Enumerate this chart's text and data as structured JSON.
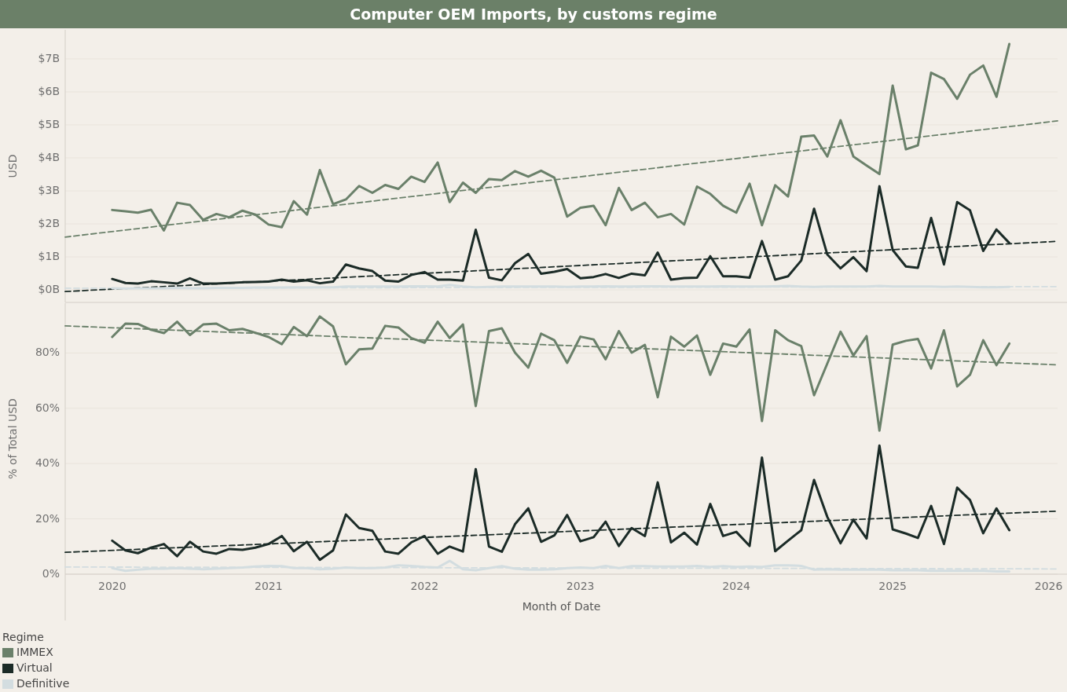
{
  "chart_data": [
    {
      "type": "line",
      "title": "Computer OEM Imports, by customs regime",
      "ylabel": "USD",
      "tick_labels": "y",
      "grid": "y",
      "line_style": "solid",
      "x": [
        "2020-01",
        "2020-02",
        "2020-03",
        "2020-04",
        "2020-05",
        "2020-06",
        "2020-07",
        "2020-08",
        "2020-09",
        "2020-10",
        "2020-11",
        "2020-12",
        "2021-01",
        "2021-02",
        "2021-03",
        "2021-04",
        "2021-05",
        "2021-06",
        "2021-07",
        "2021-08",
        "2021-09",
        "2021-10",
        "2021-11",
        "2021-12",
        "2022-01",
        "2022-02",
        "2022-03",
        "2022-04",
        "2022-05",
        "2022-06",
        "2022-07",
        "2022-08",
        "2022-09",
        "2022-10",
        "2022-11",
        "2022-12",
        "2023-01",
        "2023-02",
        "2023-03",
        "2023-04",
        "2023-05",
        "2023-06",
        "2023-07",
        "2023-08",
        "2023-09",
        "2023-10",
        "2023-11",
        "2023-12",
        "2024-01",
        "2024-02",
        "2024-03",
        "2024-04",
        "2024-05",
        "2024-06",
        "2024-07",
        "2024-08",
        "2024-09",
        "2024-10",
        "2024-11",
        "2024-12",
        "2025-01",
        "2025-02",
        "2025-03",
        "2025-04",
        "2025-05",
        "2025-06",
        "2025-07",
        "2025-08",
        "2025-09",
        "2025-10"
      ],
      "xlim": [
        "2019-09-13",
        "2026-01-22"
      ],
      "ylim": [
        -0.38,
        7.88
      ],
      "yticks": [
        {
          "value": 0,
          "label": "$0B"
        },
        {
          "value": 1,
          "label": "$1B"
        },
        {
          "value": 2,
          "label": "$2B"
        },
        {
          "value": 3,
          "label": "$3B"
        },
        {
          "value": 4,
          "label": "$4B"
        },
        {
          "value": 5,
          "label": "$5B"
        },
        {
          "value": 6,
          "label": "$6B"
        },
        {
          "value": 7,
          "label": "$7B"
        }
      ],
      "series": [
        {
          "color": "#6a806a",
          "values": [
            2.42,
            2.38,
            2.34,
            2.43,
            1.8,
            2.64,
            2.57,
            2.12,
            2.3,
            2.2,
            2.4,
            2.28,
            1.98,
            1.9,
            2.69,
            2.28,
            3.63,
            2.6,
            2.74,
            3.15,
            2.94,
            3.18,
            3.06,
            3.43,
            3.27,
            3.86,
            2.66,
            3.25,
            2.94,
            3.36,
            3.33,
            3.6,
            3.43,
            3.61,
            3.4,
            2.22,
            2.49,
            2.55,
            1.96,
            3.09,
            2.42,
            2.64,
            2.2,
            2.3,
            1.98,
            3.13,
            2.91,
            2.55,
            2.34,
            3.22,
            1.96,
            3.17,
            2.83,
            4.64,
            4.68,
            4.04,
            5.14,
            4.04,
            3.77,
            3.51,
            6.19,
            4.26,
            4.38,
            6.58,
            6.39,
            5.79,
            6.52,
            6.8,
            5.85,
            7.45
          ]
        },
        {
          "color": "#1b2b27",
          "values": [
            0.33,
            0.21,
            0.19,
            0.26,
            0.23,
            0.19,
            0.35,
            0.19,
            0.19,
            0.21,
            0.23,
            0.24,
            0.25,
            0.31,
            0.25,
            0.29,
            0.2,
            0.25,
            0.77,
            0.65,
            0.57,
            0.28,
            0.25,
            0.45,
            0.54,
            0.31,
            0.31,
            0.28,
            1.82,
            0.37,
            0.29,
            0.81,
            1.09,
            0.49,
            0.55,
            0.63,
            0.35,
            0.39,
            0.48,
            0.36,
            0.49,
            0.44,
            1.13,
            0.31,
            0.36,
            0.37,
            1.02,
            0.41,
            0.41,
            0.37,
            1.48,
            0.31,
            0.41,
            0.89,
            2.46,
            1.07,
            0.65,
            0.99,
            0.57,
            3.14,
            1.21,
            0.71,
            0.67,
            2.18,
            0.77,
            2.66,
            2.41,
            1.18,
            1.83,
            1.42
          ]
        },
        {
          "color": "#d3dde0",
          "values": [
            0.05,
            0.04,
            0.05,
            0.05,
            0.05,
            0.06,
            0.05,
            0.05,
            0.06,
            0.06,
            0.06,
            0.07,
            0.07,
            0.07,
            0.08,
            0.07,
            0.08,
            0.08,
            0.1,
            0.1,
            0.1,
            0.1,
            0.1,
            0.11,
            0.11,
            0.1,
            0.15,
            0.1,
            0.08,
            0.09,
            0.1,
            0.1,
            0.1,
            0.1,
            0.1,
            0.09,
            0.1,
            0.1,
            0.11,
            0.1,
            0.1,
            0.11,
            0.11,
            0.1,
            0.1,
            0.1,
            0.1,
            0.11,
            0.1,
            0.1,
            0.1,
            0.11,
            0.12,
            0.1,
            0.09,
            0.1,
            0.1,
            0.1,
            0.1,
            0.12,
            0.1,
            0.1,
            0.1,
            0.1,
            0.09,
            0.1,
            0.09,
            0.08,
            0.08,
            0.09
          ]
        },
        {
          "type": "line",
          "line_style": "dashed",
          "color": "#6a806a",
          "x": [
            "2019-09-13",
            "2026-01-22"
          ],
          "values": [
            1.6,
            5.12
          ]
        },
        {
          "type": "line",
          "line_style": "dashed",
          "color": "#1b2b27",
          "x": [
            "2019-09-13",
            "2026-01-22"
          ],
          "values": [
            -0.05,
            1.47
          ]
        },
        {
          "type": "line",
          "line_style": "dashed",
          "color": "#d3dde0",
          "x": [
            "2019-09-13",
            "2026-01-22"
          ],
          "values": [
            0.05,
            0.1
          ]
        }
      ]
    },
    {
      "type": "line",
      "ylabel": "% of Total USD",
      "xlabel": "Month of Date",
      "grid": "y",
      "line_style": "solid",
      "legend": "bottom left",
      "legend_title": "Regime",
      "x": [
        "2020-01",
        "2020-02",
        "2020-03",
        "2020-04",
        "2020-05",
        "2020-06",
        "2020-07",
        "2020-08",
        "2020-09",
        "2020-10",
        "2020-11",
        "2020-12",
        "2021-01",
        "2021-02",
        "2021-03",
        "2021-04",
        "2021-05",
        "2021-06",
        "2021-07",
        "2021-08",
        "2021-09",
        "2021-10",
        "2021-11",
        "2021-12",
        "2022-01",
        "2022-02",
        "2022-03",
        "2022-04",
        "2022-05",
        "2022-06",
        "2022-07",
        "2022-08",
        "2022-09",
        "2022-10",
        "2022-11",
        "2022-12",
        "2023-01",
        "2023-02",
        "2023-03",
        "2023-04",
        "2023-05",
        "2023-06",
        "2023-07",
        "2023-08",
        "2023-09",
        "2023-10",
        "2023-11",
        "2023-12",
        "2024-01",
        "2024-02",
        "2024-03",
        "2024-04",
        "2024-05",
        "2024-06",
        "2024-07",
        "2024-08",
        "2024-09",
        "2024-10",
        "2024-11",
        "2024-12",
        "2025-01",
        "2025-02",
        "2025-03",
        "2025-04",
        "2025-05",
        "2025-06",
        "2025-07",
        "2025-08",
        "2025-09",
        "2025-10"
      ],
      "xlim": [
        "2019-09-13",
        "2026-01-22"
      ],
      "xticks": [
        "2020",
        "2021",
        "2022",
        "2023",
        "2024",
        "2025",
        "2026"
      ],
      "ylim": [
        0,
        98
      ],
      "yticks": [
        {
          "value": 0,
          "label": "0%"
        },
        {
          "value": 20,
          "label": "20%"
        },
        {
          "value": 40,
          "label": "40%"
        },
        {
          "value": 60,
          "label": "60%"
        },
        {
          "value": 80,
          "label": "80%"
        }
      ],
      "series": [
        {
          "name": "IMMEX",
          "color": "#6a806a",
          "values": [
            85.8,
            90.6,
            90.5,
            88.4,
            87.2,
            91.3,
            86.5,
            90.3,
            90.6,
            88.2,
            88.7,
            87.3,
            85.8,
            83.2,
            89.4,
            86.1,
            93.2,
            89.6,
            75.9,
            81.3,
            81.6,
            89.8,
            89.2,
            85.4,
            83.7,
            91.3,
            85.4,
            90.3,
            60.8,
            87.9,
            88.9,
            80.1,
            74.7,
            87.0,
            84.6,
            76.4,
            85.9,
            84.9,
            77.7,
            87.9,
            80.1,
            82.9,
            64.0,
            85.9,
            82.3,
            86.3,
            72.1,
            83.4,
            82.3,
            88.5,
            55.4,
            88.2,
            84.6,
            82.5,
            64.7,
            76.2,
            87.7,
            79.1,
            86.1,
            51.9,
            83.0,
            84.4,
            85.1,
            74.4,
            88.2,
            67.9,
            72.1,
            84.6,
            75.6,
            83.4
          ]
        },
        {
          "name": "Virtual",
          "color": "#1b2b27",
          "values": [
            12.1,
            8.6,
            7.6,
            9.6,
            10.9,
            6.5,
            11.7,
            8.2,
            7.4,
            9.1,
            8.8,
            9.6,
            10.9,
            13.8,
            8.3,
            11.7,
            5.2,
            8.6,
            21.6,
            16.7,
            15.7,
            8.2,
            7.4,
            11.5,
            13.8,
            7.4,
            10.0,
            8.2,
            38.0,
            10.0,
            8.1,
            18.1,
            23.8,
            11.7,
            14.0,
            21.4,
            11.9,
            13.4,
            19.0,
            10.2,
            16.7,
            13.8,
            33.2,
            11.5,
            15.0,
            10.7,
            25.4,
            13.8,
            15.3,
            10.2,
            42.2,
            8.3,
            12.1,
            15.9,
            34.1,
            20.7,
            11.2,
            19.7,
            12.9,
            46.5,
            16.2,
            14.7,
            13.1,
            24.7,
            10.9,
            31.3,
            26.8,
            14.8,
            23.8,
            15.9
          ]
        },
        {
          "name": "Definitive",
          "color": "#d3dde0",
          "values": [
            2.2,
            1.2,
            1.6,
            2.0,
            2.0,
            2.2,
            2.0,
            1.8,
            2.0,
            2.2,
            2.4,
            2.8,
            3.0,
            2.9,
            2.2,
            2.2,
            1.8,
            2.0,
            2.4,
            2.2,
            2.2,
            2.4,
            3.2,
            3.0,
            2.6,
            2.4,
            4.8,
            1.8,
            1.4,
            2.2,
            2.9,
            2.0,
            1.6,
            1.6,
            1.8,
            2.2,
            2.4,
            2.2,
            3.0,
            2.2,
            2.9,
            2.9,
            2.8,
            2.8,
            2.8,
            3.0,
            2.6,
            2.9,
            2.6,
            2.8,
            2.6,
            3.2,
            3.2,
            3.0,
            1.6,
            1.8,
            1.6,
            1.6,
            1.6,
            1.6,
            1.4,
            1.4,
            1.4,
            1.2,
            1.2,
            1.2,
            1.2,
            1.2,
            1.0,
            1.0
          ]
        },
        {
          "type": "line",
          "line_style": "dashed",
          "color": "#6a806a",
          "x": [
            "2019-09-13",
            "2026-01-22"
          ],
          "values": [
            89.8,
            75.7
          ]
        },
        {
          "type": "line",
          "line_style": "dashed",
          "color": "#1b2b27",
          "x": [
            "2019-09-13",
            "2026-01-22"
          ],
          "values": [
            7.9,
            22.8
          ]
        },
        {
          "type": "line",
          "line_style": "dashed",
          "color": "#d3dde0",
          "x": [
            "2019-09-13",
            "2026-01-22"
          ],
          "values": [
            2.6,
            1.9
          ]
        }
      ]
    }
  ]
}
